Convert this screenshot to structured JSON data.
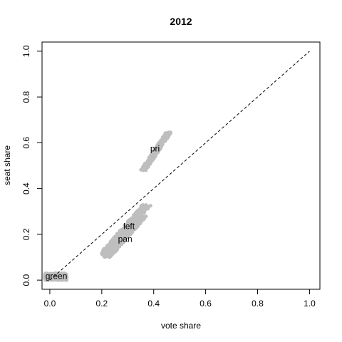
{
  "chart_data": {
    "type": "scatter",
    "title": "2012",
    "xlabel": "vote share",
    "ylabel": "seat share",
    "xlim": [
      -0.03,
      1.04
    ],
    "ylim": [
      -0.04,
      1.04
    ],
    "xticks": [
      0.0,
      0.2,
      0.4,
      0.6,
      0.8,
      1.0
    ],
    "yticks": [
      0.0,
      0.2,
      0.4,
      0.6,
      0.8,
      1.0
    ],
    "tick_labels": [
      "0.0",
      "0.2",
      "0.4",
      "0.6",
      "0.8",
      "1.0"
    ],
    "reference_line": {
      "from": [
        0,
        0
      ],
      "to": [
        1,
        1
      ],
      "style": "dashed"
    },
    "point_color": "#bebebe",
    "series": [
      {
        "name": "pri",
        "cloud": {
          "x_range": [
            0.38,
            0.44
          ],
          "y_range": [
            0.48,
            0.65
          ],
          "slope": 1.7
        },
        "label_at": [
          0.405,
          0.575
        ]
      },
      {
        "name": "left",
        "cloud": {
          "x_range": [
            0.24,
            0.34
          ],
          "y_range": [
            0.11,
            0.33
          ],
          "slope": 1.3
        },
        "label_at": [
          0.305,
          0.235
        ]
      },
      {
        "name": "pan",
        "cloud": {
          "x_range": [
            0.25,
            0.33
          ],
          "y_range": [
            0.1,
            0.28
          ],
          "slope": 1.3
        },
        "label_at": [
          0.29,
          0.18
        ]
      },
      {
        "name": "green",
        "cloud": {
          "x_range": [
            -0.02,
            0.065
          ],
          "y_range": [
            0.0,
            0.03
          ],
          "slope": 0
        },
        "label_at": [
          0.025,
          0.017
        ]
      }
    ]
  }
}
